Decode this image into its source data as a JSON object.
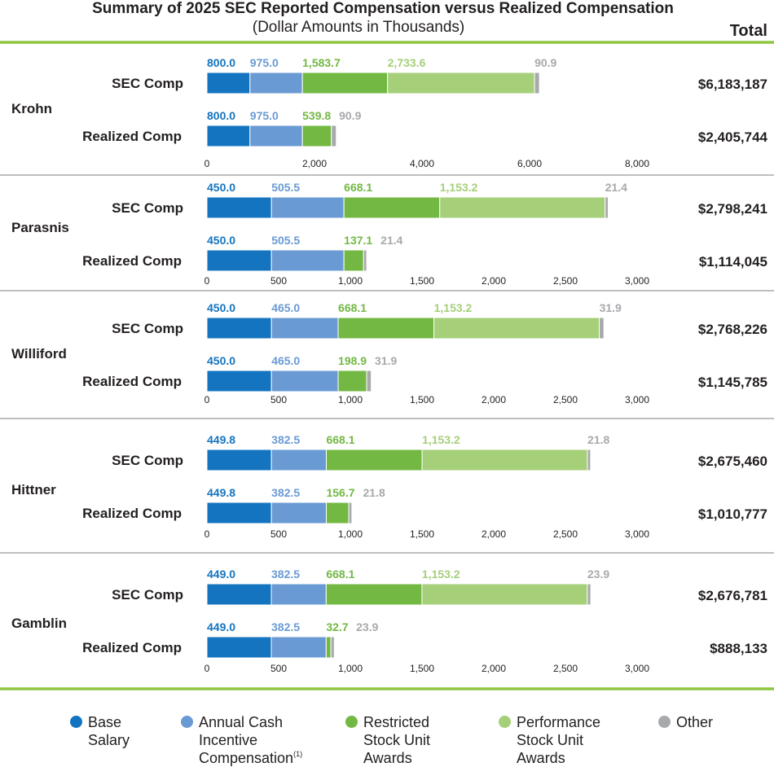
{
  "header": {
    "title": "Summary of 2025 SEC Reported Compensation versus Realized Compensation",
    "subtitle": "(Dollar Amounts in Thousands)",
    "total_label": "Total"
  },
  "colors": {
    "base_salary": "#1474bf",
    "annual_cash": "#6a9ad4",
    "rsu": "#72b843",
    "psu": "#a5cf78",
    "other": "#a7a9ac",
    "divider": "#8dc63f"
  },
  "legend": [
    {
      "key": "base_salary",
      "label": "Base\nSalary",
      "sup": ""
    },
    {
      "key": "annual_cash",
      "label": "Annual Cash\nIncentive\nCompensation",
      "sup": "(1)"
    },
    {
      "key": "rsu",
      "label": "Restricted\nStock Unit\nAwards",
      "sup": ""
    },
    {
      "key": "psu",
      "label": "Performance\nStock Unit\nAwards",
      "sup": ""
    },
    {
      "key": "other",
      "label": "Other",
      "sup": ""
    }
  ],
  "chart_data": {
    "type": "bar",
    "orientation": "horizontal",
    "stacked": true,
    "series_order": [
      "Base Salary",
      "Annual Cash Incentive Compensation",
      "Restricted Stock Unit Awards",
      "Performance Stock Unit Awards",
      "Other"
    ],
    "executives": [
      {
        "name": "Krohn",
        "xlim": [
          0,
          8000
        ],
        "ticks": [
          "0",
          "2,000",
          "4,000",
          "6,000",
          "8,000"
        ],
        "tick_values": [
          0,
          2000,
          4000,
          6000,
          8000
        ],
        "rows": [
          {
            "label": "SEC Comp",
            "values": [
              800.0,
              975.0,
              1583.7,
              2733.6,
              90.9
            ],
            "value_labels": [
              "800.0",
              "975.0",
              "1,583.7",
              "2,733.6",
              "90.9"
            ],
            "total": "$6,183,187"
          },
          {
            "label": "Realized Comp",
            "values": [
              800.0,
              975.0,
              539.8,
              0,
              90.9
            ],
            "value_labels": [
              "800.0",
              "975.0",
              "539.8",
              "",
              "90.9"
            ],
            "total": "$2,405,744"
          }
        ]
      },
      {
        "name": "Parasnis",
        "xlim": [
          0,
          3000
        ],
        "ticks": [
          "0",
          "500",
          "1,000",
          "1,500",
          "2,000",
          "2,500",
          "3,000"
        ],
        "tick_values": [
          0,
          500,
          1000,
          1500,
          2000,
          2500,
          3000
        ],
        "rows": [
          {
            "label": "SEC Comp",
            "values": [
              450.0,
              505.5,
              668.1,
              1153.2,
              21.4
            ],
            "value_labels": [
              "450.0",
              "505.5",
              "668.1",
              "1,153.2",
              "21.4"
            ],
            "total": "$2,798,241"
          },
          {
            "label": "Realized Comp",
            "values": [
              450.0,
              505.5,
              137.1,
              0,
              21.4
            ],
            "value_labels": [
              "450.0",
              "505.5",
              "137.1",
              "",
              "21.4"
            ],
            "total": "$1,114,045"
          }
        ]
      },
      {
        "name": "Williford",
        "xlim": [
          0,
          3000
        ],
        "ticks": [
          "0",
          "500",
          "1,000",
          "1,500",
          "2,000",
          "2,500",
          "3,000"
        ],
        "tick_values": [
          0,
          500,
          1000,
          1500,
          2000,
          2500,
          3000
        ],
        "rows": [
          {
            "label": "SEC Comp",
            "values": [
              450.0,
              465.0,
              668.1,
              1153.2,
              31.9
            ],
            "value_labels": [
              "450.0",
              "465.0",
              "668.1",
              "1,153.2",
              "31.9"
            ],
            "total": "$2,768,226"
          },
          {
            "label": "Realized Comp",
            "values": [
              450.0,
              465.0,
              198.9,
              0,
              31.9
            ],
            "value_labels": [
              "450.0",
              "465.0",
              "198.9",
              "",
              "31.9"
            ],
            "total": "$1,145,785"
          }
        ]
      },
      {
        "name": "Hittner",
        "xlim": [
          0,
          3000
        ],
        "ticks": [
          "0",
          "500",
          "1,000",
          "1,500",
          "2,000",
          "2,500",
          "3,000"
        ],
        "tick_values": [
          0,
          500,
          1000,
          1500,
          2000,
          2500,
          3000
        ],
        "rows": [
          {
            "label": "SEC Comp",
            "values": [
              449.8,
              382.5,
              668.1,
              1153.2,
              21.8
            ],
            "value_labels": [
              "449.8",
              "382.5",
              "668.1",
              "1,153.2",
              "21.8"
            ],
            "total": "$2,675,460"
          },
          {
            "label": "Realized Comp",
            "values": [
              449.8,
              382.5,
              156.7,
              0,
              21.8
            ],
            "value_labels": [
              "449.8",
              "382.5",
              "156.7",
              "",
              "21.8"
            ],
            "total": "$1,010,777"
          }
        ]
      },
      {
        "name": "Gamblin",
        "xlim": [
          0,
          3000
        ],
        "ticks": [
          "0",
          "500",
          "1,000",
          "1,500",
          "2,000",
          "2,500",
          "3,000"
        ],
        "tick_values": [
          0,
          500,
          1000,
          1500,
          2000,
          2500,
          3000
        ],
        "rows": [
          {
            "label": "SEC Comp",
            "values": [
              449.0,
              382.5,
              668.1,
              1153.2,
              23.9
            ],
            "value_labels": [
              "449.0",
              "382.5",
              "668.1",
              "1,153.2",
              "23.9"
            ],
            "total": "$2,676,781"
          },
          {
            "label": "Realized Comp",
            "values": [
              449.0,
              382.5,
              32.7,
              0,
              23.9
            ],
            "value_labels": [
              "449.0",
              "382.5",
              "32.7",
              "",
              "23.9"
            ],
            "total": "$888,133"
          }
        ]
      }
    ]
  }
}
